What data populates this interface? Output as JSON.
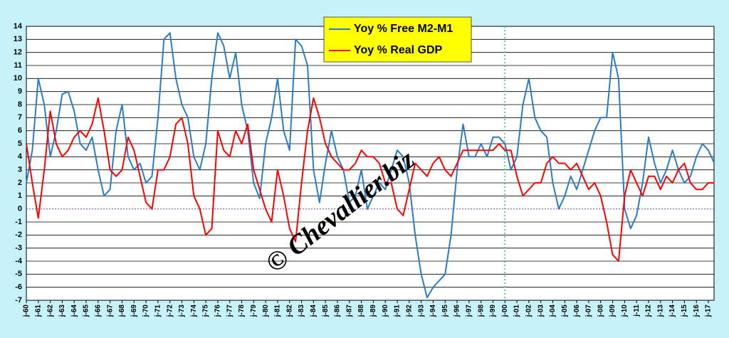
{
  "chart_data": {
    "type": "line",
    "watermark": "© Chevallier.biz",
    "categories": [
      "j-60",
      null,
      "j-61",
      null,
      "j-62",
      null,
      "j-63",
      null,
      "j-64",
      null,
      "j-65",
      null,
      "j-66",
      null,
      "j-67",
      null,
      "j-68",
      null,
      "j-69",
      null,
      "j-70",
      null,
      "j-71",
      null,
      "j-72",
      null,
      "j-73",
      null,
      "j-74",
      null,
      "j-75",
      null,
      "j-76",
      null,
      "j-77",
      null,
      "j-78",
      null,
      "j-79",
      null,
      "j-80",
      null,
      "j-81",
      null,
      "j-82",
      null,
      "j-83",
      null,
      "j-84",
      null,
      "j-85",
      null,
      "j-86",
      null,
      "j-87",
      null,
      "j-88",
      null,
      "j-89",
      null,
      "j-90",
      null,
      "j-91",
      null,
      "j-92",
      null,
      "j-93",
      null,
      "j-94",
      null,
      "j-95",
      null,
      "j-96",
      null,
      "j-97",
      null,
      "j-98",
      null,
      "j-99",
      null,
      "j-00",
      null,
      "j-01",
      null,
      "j-02",
      null,
      "j-03",
      null,
      "j-04",
      null,
      "j-05",
      null,
      "j-06",
      null,
      "j-07",
      null,
      "j-08",
      null,
      "j-09",
      null,
      "j-10",
      null,
      "j-11",
      null,
      "j-12",
      null,
      "j-13",
      null,
      "j-14",
      null,
      "j-15",
      null,
      "j-16",
      null,
      "j-17",
      null
    ],
    "series": [
      {
        "name": "Yoy % Free M2-M1",
        "color": "#2a7dc4",
        "values": [
          2,
          4.5,
          10,
          8,
          4,
          6,
          8.8,
          9,
          7.5,
          5,
          4.5,
          5.5,
          3,
          1,
          1.5,
          6,
          8,
          4,
          3,
          3.5,
          2,
          2.5,
          7,
          13,
          13.5,
          10,
          8,
          7,
          4,
          3,
          5,
          10,
          13.5,
          12.5,
          10,
          12,
          8,
          6,
          2,
          0.8,
          5,
          7,
          10,
          6,
          4.5,
          13,
          12.5,
          11,
          3,
          0.5,
          3.5,
          6,
          4,
          3,
          0.5,
          1,
          3,
          0,
          1,
          2,
          1.5,
          3,
          4.5,
          4,
          2,
          -2,
          -5,
          -6.8,
          -6,
          -5.5,
          -5,
          -2,
          3,
          6.5,
          4,
          4,
          5,
          4,
          5.5,
          5.5,
          5,
          3,
          4,
          8,
          10,
          7,
          6,
          5.5,
          2,
          0,
          1,
          2.5,
          1.5,
          3,
          4.5,
          6,
          7,
          7,
          12,
          10,
          0,
          -1.5,
          -0.5,
          2,
          5.5,
          3.5,
          2,
          3,
          4.5,
          3,
          2,
          2.5,
          4,
          5,
          4.5,
          3.5
        ]
      },
      {
        "name": "Yoy % Real GDP",
        "color": "#ff0000",
        "values": [
          5,
          2,
          -0.7,
          3,
          7.5,
          5,
          4,
          4.5,
          5.5,
          6,
          5.5,
          6.5,
          8.5,
          6,
          3,
          2.5,
          3,
          5.5,
          4.5,
          2.5,
          0.5,
          0,
          3,
          3,
          4,
          6.5,
          7,
          5,
          1,
          0,
          -2,
          -1.5,
          6,
          4.5,
          4,
          6,
          5,
          6.5,
          3,
          1.5,
          0,
          -1,
          3,
          1,
          -1.5,
          -2.5,
          2,
          6,
          8.5,
          7,
          5,
          4,
          3.5,
          3,
          3,
          3.5,
          4.5,
          4,
          4,
          3.5,
          2,
          2,
          0,
          -0.5,
          1.5,
          3.5,
          3,
          2.5,
          3.5,
          4,
          3,
          2.5,
          3.5,
          4.5,
          4.5,
          4.5,
          4.5,
          4.5,
          4.5,
          5,
          4.5,
          4.5,
          2.5,
          1,
          1.5,
          2,
          2,
          3.5,
          4,
          3.5,
          3.5,
          3,
          3.5,
          2.5,
          1.5,
          2,
          1,
          -1,
          -3.5,
          -4,
          1,
          3,
          2,
          1,
          2.5,
          2.5,
          1.5,
          2.5,
          2,
          3,
          3.5,
          2,
          1.5,
          1.5,
          2,
          2
        ]
      }
    ],
    "ylim": [
      -7,
      14
    ],
    "yticks": [
      -7,
      -6,
      -5,
      -4,
      -3,
      -2,
      -1,
      0,
      1,
      2,
      3,
      4,
      5,
      6,
      7,
      8,
      9,
      10,
      11,
      12,
      13,
      14
    ],
    "grid": true
  }
}
